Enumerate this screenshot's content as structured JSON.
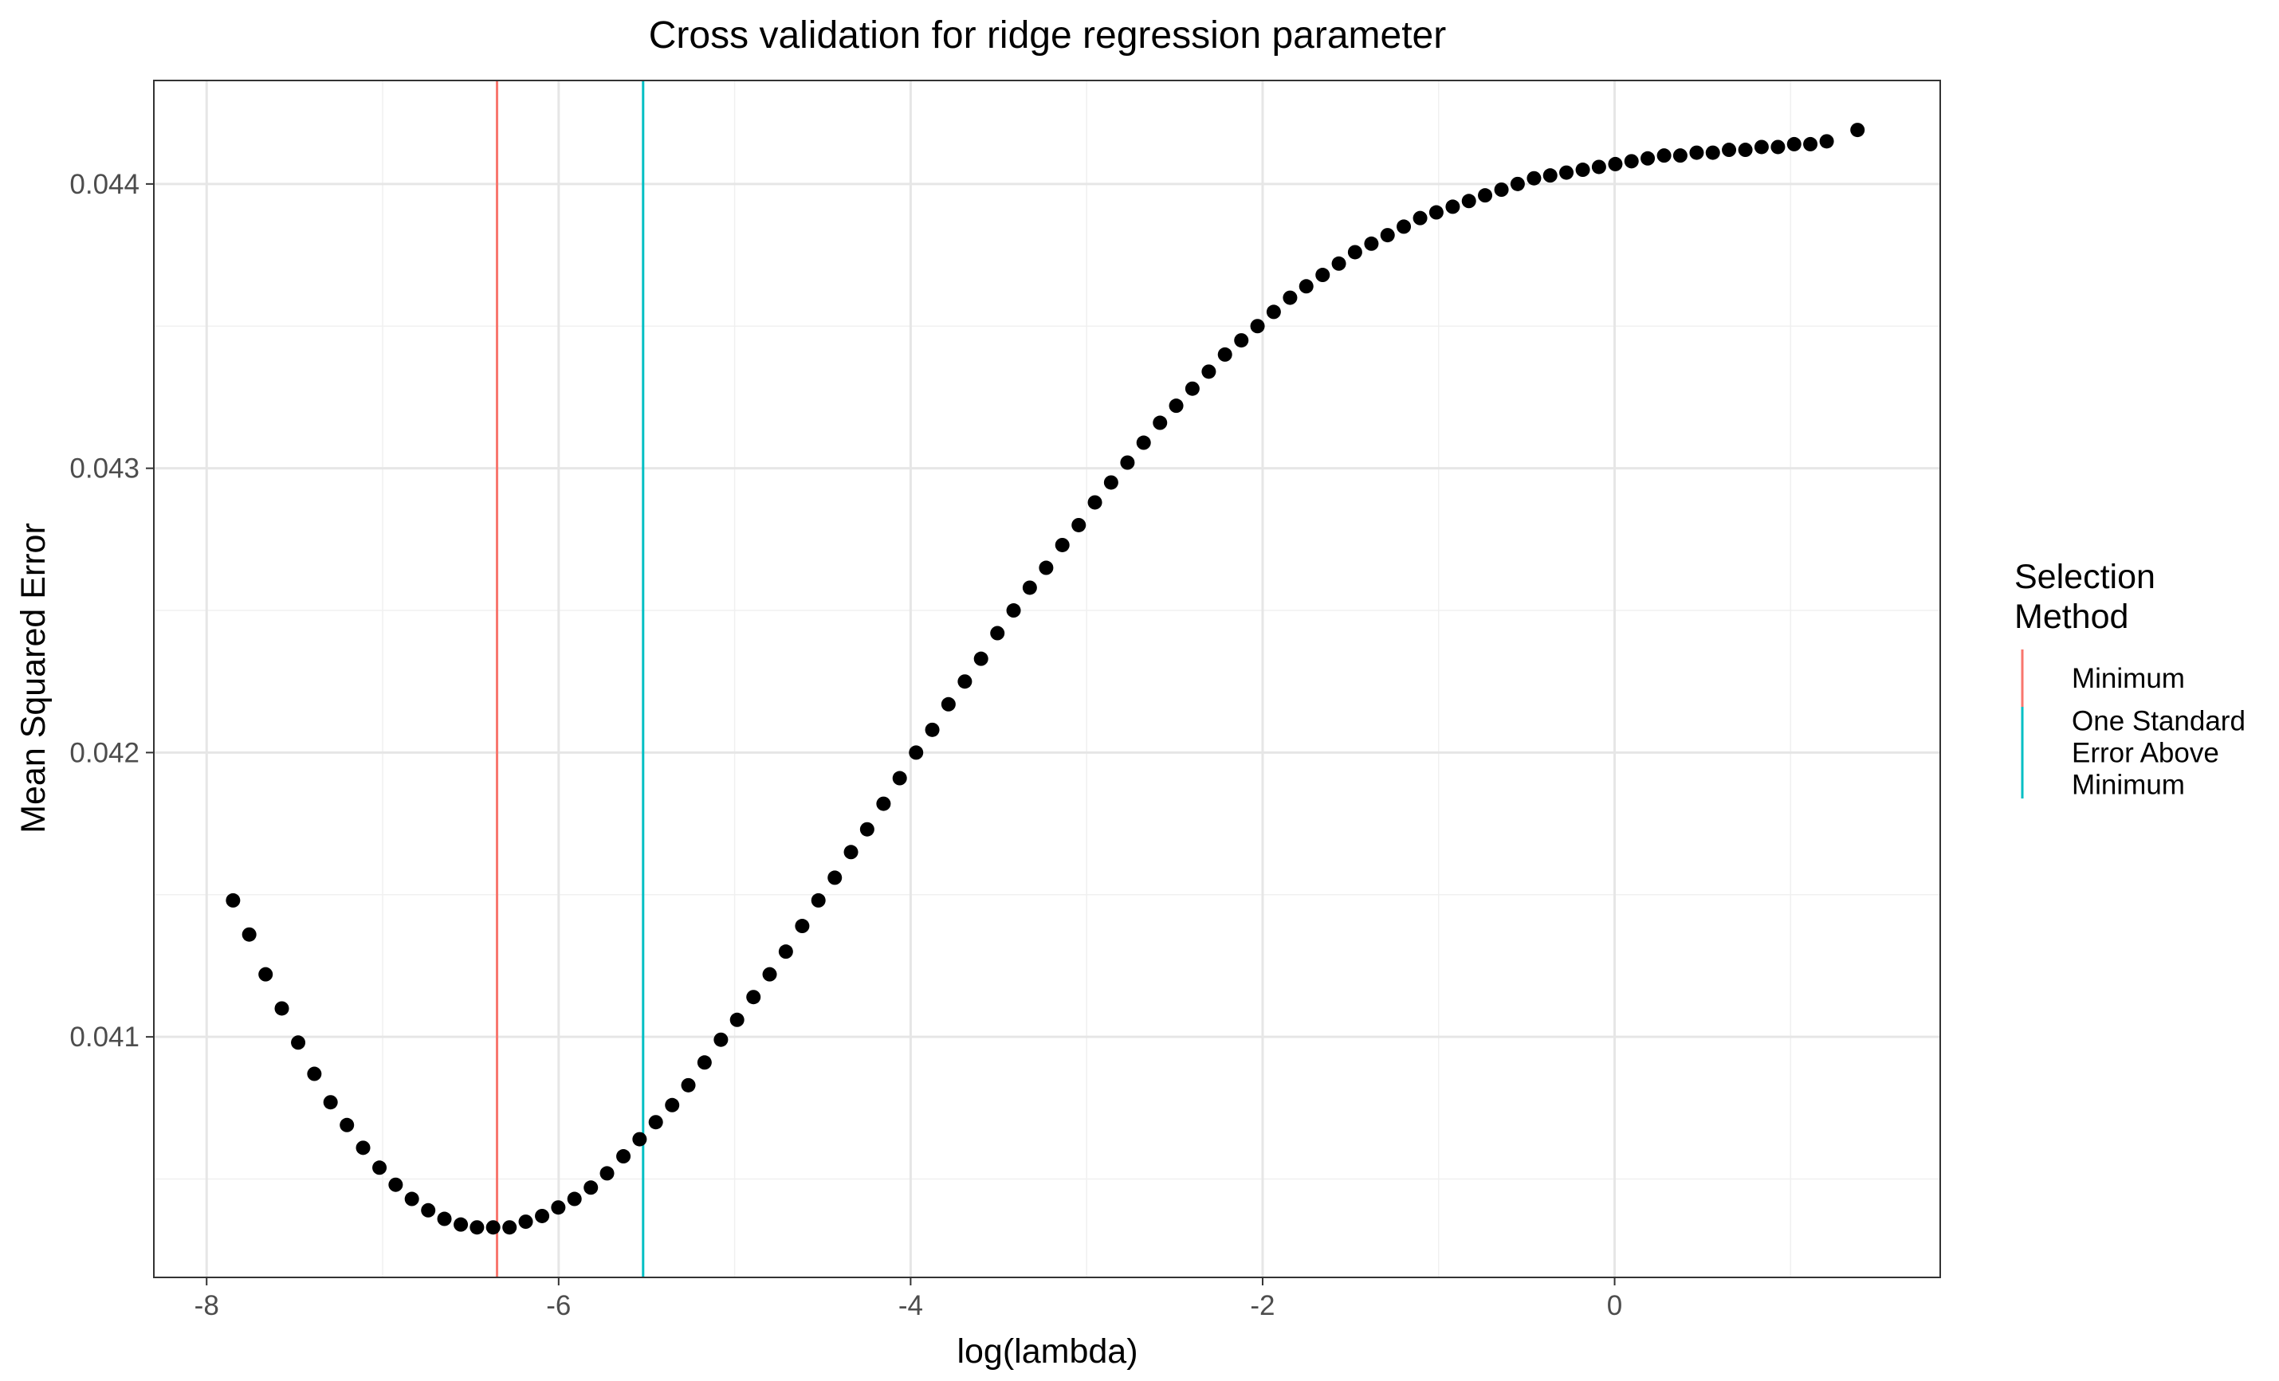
{
  "chart_data": {
    "type": "scatter",
    "title": "Cross validation for ridge regression parameter",
    "xlabel": "log(lambda)",
    "ylabel": "Mean Squared Error",
    "xlim": [
      -8.3,
      1.85
    ],
    "ylim": [
      0.040154,
      0.044364
    ],
    "x_ticks": [
      -8,
      -6,
      -4,
      -2,
      0
    ],
    "x_tick_labels": [
      "-8",
      "-6",
      "-4",
      "-2",
      "0"
    ],
    "y_ticks": [
      0.041,
      0.042,
      0.043,
      0.044
    ],
    "y_tick_labels": [
      "0.041",
      "0.042",
      "0.043",
      "0.044"
    ],
    "x_minor_gridlines": [
      -7,
      -5,
      -3,
      -1,
      1
    ],
    "y_minor_gridlines": [
      0.0405,
      0.0415,
      0.0425,
      0.0435
    ],
    "grid": true,
    "point_color": "#000000",
    "vlines": [
      {
        "name": "Minimum",
        "x": -6.35,
        "color": "#F8766D"
      },
      {
        "name": "One Standard Error Above Minimum",
        "x": -5.52,
        "color": "#00BFC4"
      }
    ],
    "legend": {
      "title_lines": [
        "Selection",
        "Method"
      ],
      "placement": "right",
      "entries": [
        {
          "lines": [
            "Minimum"
          ],
          "color": "#F8766D"
        },
        {
          "lines": [
            "One Standard",
            "Error Above",
            "Minimum"
          ],
          "color": "#00BFC4"
        }
      ]
    },
    "x": [
      -7.85,
      -7.758,
      -7.665,
      -7.573,
      -7.48,
      -7.388,
      -7.296,
      -7.203,
      -7.111,
      -7.018,
      -6.926,
      -6.834,
      -6.741,
      -6.649,
      -6.556,
      -6.464,
      -6.372,
      -6.279,
      -6.187,
      -6.094,
      -6.002,
      -5.91,
      -5.817,
      -5.725,
      -5.632,
      -5.54,
      -5.448,
      -5.355,
      -5.263,
      -5.171,
      -5.078,
      -4.986,
      -4.893,
      -4.801,
      -4.709,
      -4.616,
      -4.524,
      -4.431,
      -4.339,
      -4.247,
      -4.154,
      -4.062,
      -3.969,
      -3.877,
      -3.785,
      -3.692,
      -3.6,
      -3.507,
      -3.415,
      -3.323,
      -3.23,
      -3.138,
      -3.045,
      -2.953,
      -2.861,
      -2.768,
      -2.676,
      -2.583,
      -2.491,
      -2.399,
      -2.306,
      -2.214,
      -2.121,
      -2.029,
      -1.937,
      -1.844,
      -1.752,
      -1.659,
      -1.567,
      -1.475,
      -1.382,
      -1.29,
      -1.198,
      -1.105,
      -1.013,
      -0.92,
      -0.828,
      -0.736,
      -0.643,
      -0.551,
      -0.458,
      -0.366,
      -0.274,
      -0.181,
      -0.089,
      0.004,
      0.096,
      0.188,
      0.281,
      0.373,
      0.466,
      0.558,
      0.65,
      0.743,
      0.835,
      0.928,
      1.02,
      1.112,
      1.205,
      1.38
    ],
    "y": [
      0.04148,
      0.04136,
      0.04122,
      0.0411,
      0.04098,
      0.04087,
      0.04077,
      0.04069,
      0.04061,
      0.04054,
      0.04048,
      0.04043,
      0.04039,
      0.04036,
      0.04034,
      0.04033,
      0.04033,
      0.04033,
      0.04035,
      0.04037,
      0.0404,
      0.04043,
      0.04047,
      0.04052,
      0.04058,
      0.04064,
      0.0407,
      0.04076,
      0.04083,
      0.04091,
      0.04099,
      0.04106,
      0.04114,
      0.04122,
      0.0413,
      0.04139,
      0.04148,
      0.04156,
      0.04165,
      0.04173,
      0.04182,
      0.04191,
      0.042,
      0.04208,
      0.04217,
      0.04225,
      0.04233,
      0.04242,
      0.0425,
      0.04258,
      0.04265,
      0.04273,
      0.0428,
      0.04288,
      0.04295,
      0.04302,
      0.04309,
      0.04316,
      0.04322,
      0.04328,
      0.04334,
      0.0434,
      0.04345,
      0.0435,
      0.04355,
      0.0436,
      0.04364,
      0.04368,
      0.04372,
      0.04376,
      0.04379,
      0.04382,
      0.04385,
      0.04388,
      0.0439,
      0.04392,
      0.04394,
      0.04396,
      0.04398,
      0.044,
      0.04402,
      0.04403,
      0.04404,
      0.04405,
      0.04406,
      0.04407,
      0.04408,
      0.04409,
      0.0441,
      0.0441,
      0.04411,
      0.04411,
      0.04412,
      0.04412,
      0.04413,
      0.04413,
      0.04414,
      0.04414,
      0.04415,
      0.04419
    ]
  }
}
